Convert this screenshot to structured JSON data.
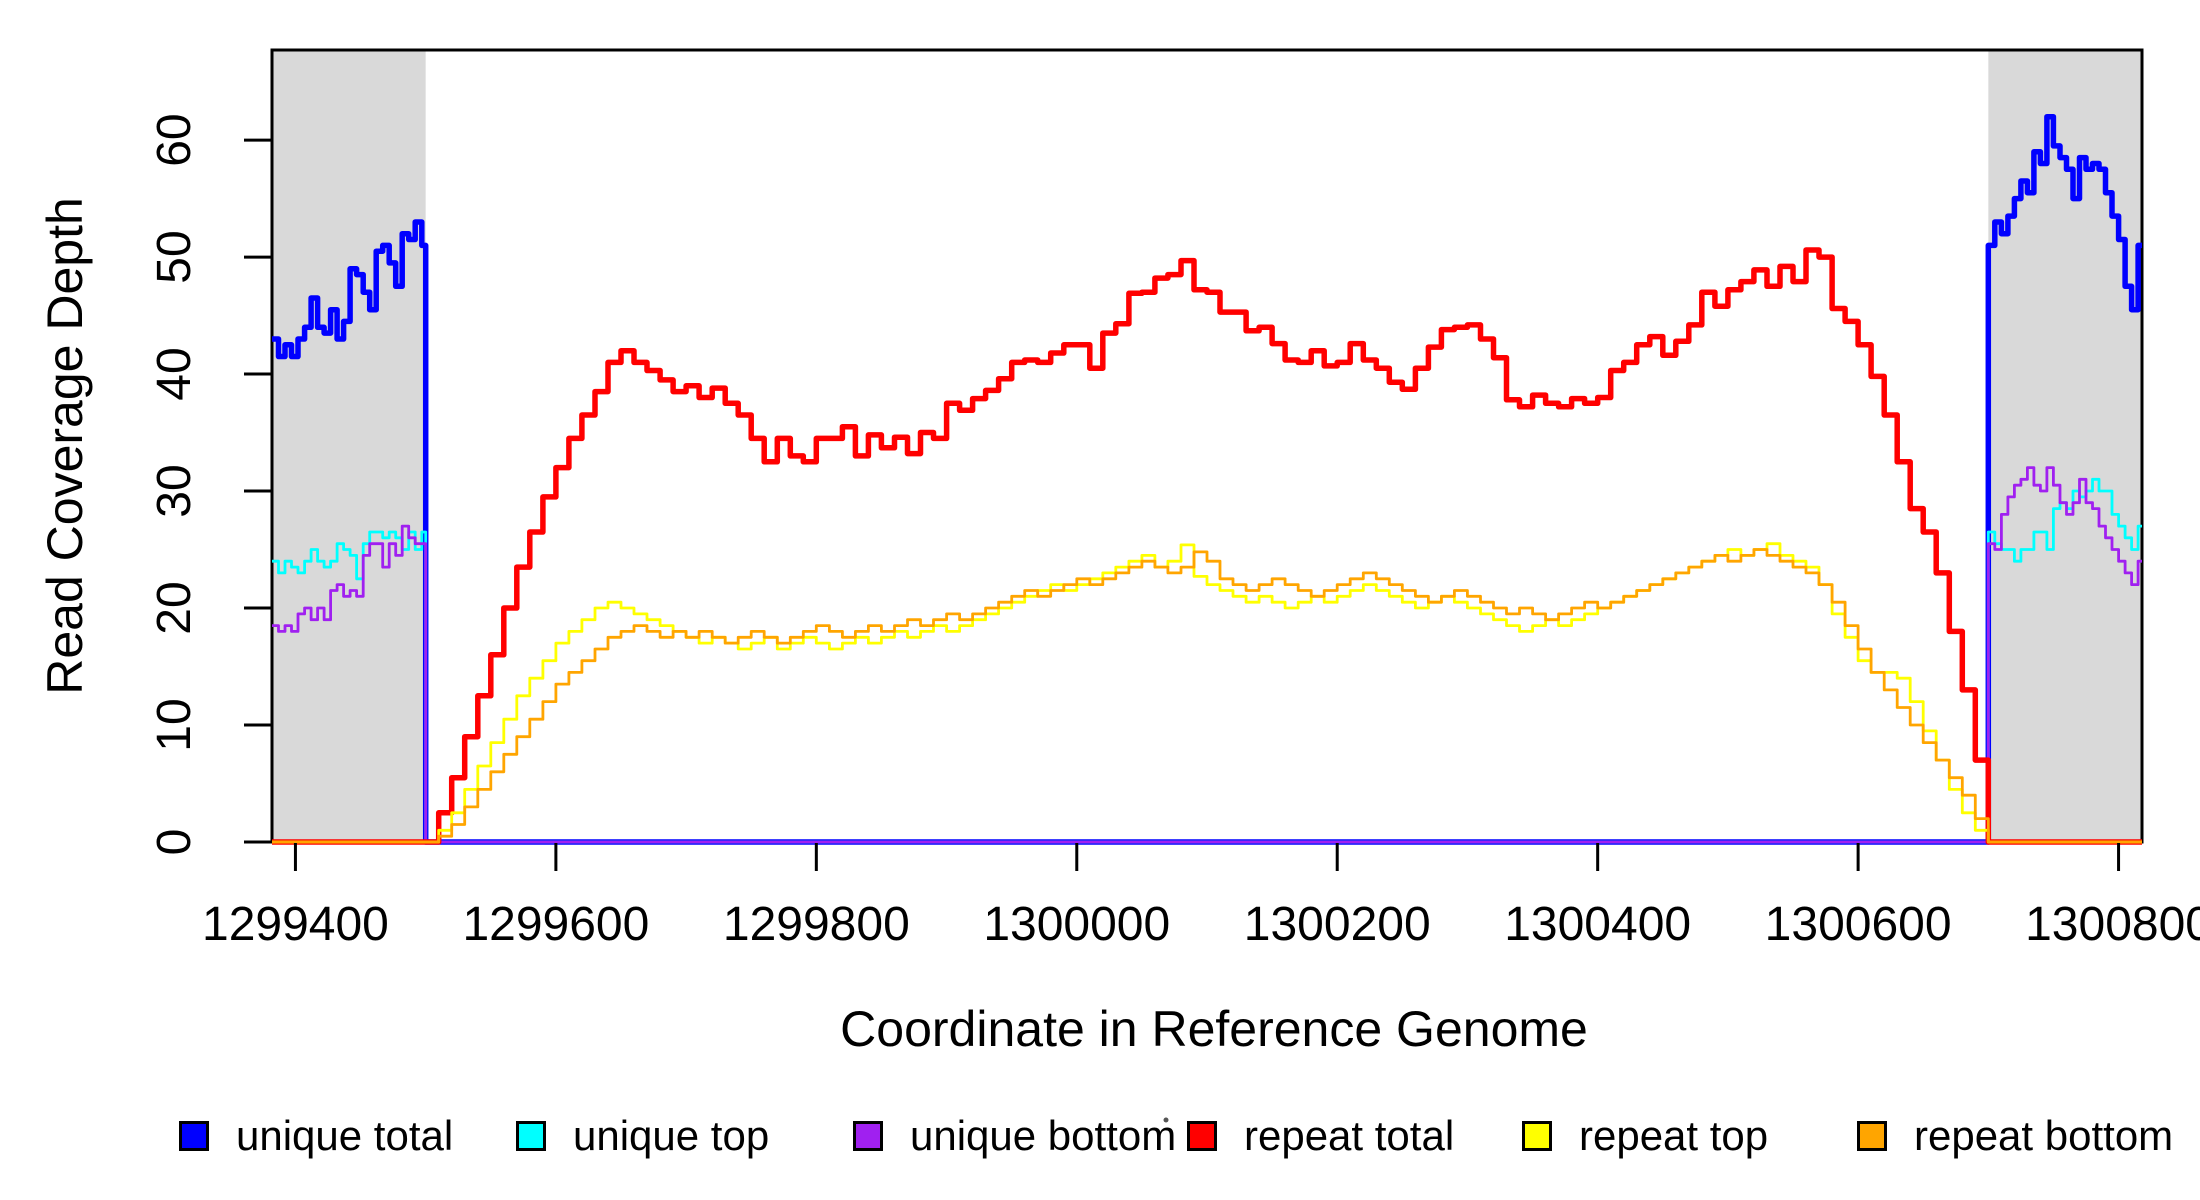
{
  "chart_data": {
    "type": "line",
    "title": "",
    "xlabel": "Coordinate in Reference Genome",
    "ylabel": "Read Coverage Depth",
    "xlim": [
      1299382,
      1300818
    ],
    "ylim": [
      0,
      67.7
    ],
    "x_ticks": [
      1299400,
      1299600,
      1299800,
      1300000,
      1300200,
      1300400,
      1300600,
      1300800
    ],
    "y_ticks": [
      0,
      10,
      20,
      30,
      40,
      50,
      60
    ],
    "grid": false,
    "step_interpolation": true,
    "legend_position": "bottom",
    "shaded_regions": [
      {
        "x0": 1299382,
        "x1": 1299500,
        "color": "#D9D9D9"
      },
      {
        "x0": 1300700,
        "x1": 1300818,
        "color": "#D9D9D9"
      }
    ],
    "axis_color": "#000000",
    "series": [
      {
        "name": "unique total",
        "color": "#0000FF",
        "width": 5.5,
        "points": [
          [
            1299382,
            43
          ],
          [
            1299387,
            41.5
          ],
          [
            1299392,
            42.5
          ],
          [
            1299397,
            41.5
          ],
          [
            1299402,
            43
          ],
          [
            1299407,
            44
          ],
          [
            1299412,
            46.5
          ],
          [
            1299417,
            44
          ],
          [
            1299422,
            43.5
          ],
          [
            1299427,
            45.5
          ],
          [
            1299432,
            43
          ],
          [
            1299437,
            44.5
          ],
          [
            1299442,
            49
          ],
          [
            1299447,
            48.5
          ],
          [
            1299452,
            47
          ],
          [
            1299457,
            45.5
          ],
          [
            1299462,
            50.5
          ],
          [
            1299467,
            51
          ],
          [
            1299472,
            49.5
          ],
          [
            1299477,
            47.5
          ],
          [
            1299482,
            52
          ],
          [
            1299487,
            51.5
          ],
          [
            1299492,
            53
          ],
          [
            1299497,
            51
          ],
          [
            1299500,
            0
          ],
          [
            1300700,
            0
          ],
          [
            1300700,
            51
          ],
          [
            1300705,
            53
          ],
          [
            1300710,
            52
          ],
          [
            1300715,
            53.5
          ],
          [
            1300720,
            55
          ],
          [
            1300725,
            56.5
          ],
          [
            1300730,
            55.5
          ],
          [
            1300735,
            59
          ],
          [
            1300740,
            58
          ],
          [
            1300745,
            62
          ],
          [
            1300750,
            59.5
          ],
          [
            1300755,
            58.5
          ],
          [
            1300760,
            57.5
          ],
          [
            1300765,
            55
          ],
          [
            1300770,
            58.5
          ],
          [
            1300775,
            57.5
          ],
          [
            1300780,
            58
          ],
          [
            1300785,
            57.5
          ],
          [
            1300790,
            55.5
          ],
          [
            1300795,
            53.5
          ],
          [
            1300800,
            51.5
          ],
          [
            1300805,
            47.5
          ],
          [
            1300810,
            45.5
          ],
          [
            1300815,
            51
          ],
          [
            1300818,
            51
          ]
        ]
      },
      {
        "name": "unique top",
        "color": "#00FFFF",
        "width": 2.8,
        "points": [
          [
            1299382,
            24
          ],
          [
            1299387,
            23
          ],
          [
            1299392,
            24
          ],
          [
            1299397,
            23.5
          ],
          [
            1299402,
            23
          ],
          [
            1299407,
            24
          ],
          [
            1299412,
            25
          ],
          [
            1299417,
            24
          ],
          [
            1299422,
            23.5
          ],
          [
            1299427,
            24
          ],
          [
            1299432,
            25.5
          ],
          [
            1299437,
            25
          ],
          [
            1299442,
            24.5
          ],
          [
            1299447,
            22.5
          ],
          [
            1299452,
            25.5
          ],
          [
            1299457,
            26.5
          ],
          [
            1299462,
            26.5
          ],
          [
            1299467,
            26
          ],
          [
            1299472,
            26.5
          ],
          [
            1299477,
            26
          ],
          [
            1299482,
            25
          ],
          [
            1299487,
            26.5
          ],
          [
            1299492,
            25
          ],
          [
            1299497,
            26.5
          ],
          [
            1299500,
            0
          ],
          [
            1300700,
            0
          ],
          [
            1300700,
            26.5
          ],
          [
            1300705,
            25.5
          ],
          [
            1300710,
            25
          ],
          [
            1300715,
            25
          ],
          [
            1300720,
            24
          ],
          [
            1300725,
            25
          ],
          [
            1300730,
            25
          ],
          [
            1300735,
            26.5
          ],
          [
            1300740,
            26.5
          ],
          [
            1300745,
            25
          ],
          [
            1300750,
            28.5
          ],
          [
            1300755,
            29
          ],
          [
            1300760,
            28.5
          ],
          [
            1300765,
            30
          ],
          [
            1300770,
            29.5
          ],
          [
            1300775,
            30
          ],
          [
            1300780,
            31
          ],
          [
            1300785,
            30
          ],
          [
            1300790,
            30
          ],
          [
            1300795,
            28
          ],
          [
            1300800,
            27
          ],
          [
            1300805,
            26
          ],
          [
            1300810,
            25
          ],
          [
            1300815,
            27
          ],
          [
            1300818,
            27
          ]
        ]
      },
      {
        "name": "unique bottom",
        "color": "#A020F0",
        "width": 2.8,
        "points": [
          [
            1299382,
            18.5
          ],
          [
            1299387,
            18
          ],
          [
            1299392,
            18.5
          ],
          [
            1299397,
            18
          ],
          [
            1299402,
            19.5
          ],
          [
            1299407,
            20
          ],
          [
            1299412,
            19
          ],
          [
            1299417,
            20
          ],
          [
            1299422,
            19
          ],
          [
            1299427,
            21.5
          ],
          [
            1299432,
            22
          ],
          [
            1299437,
            21
          ],
          [
            1299442,
            21.5
          ],
          [
            1299447,
            21
          ],
          [
            1299452,
            24.5
          ],
          [
            1299457,
            25.5
          ],
          [
            1299462,
            25.5
          ],
          [
            1299467,
            23.5
          ],
          [
            1299472,
            25.5
          ],
          [
            1299477,
            24.5
          ],
          [
            1299482,
            27
          ],
          [
            1299487,
            26
          ],
          [
            1299492,
            25.5
          ],
          [
            1299497,
            25.5
          ],
          [
            1299500,
            0
          ],
          [
            1300700,
            0
          ],
          [
            1300700,
            25.5
          ],
          [
            1300705,
            25
          ],
          [
            1300710,
            28
          ],
          [
            1300715,
            29.5
          ],
          [
            1300720,
            30.5
          ],
          [
            1300725,
            31
          ],
          [
            1300730,
            32
          ],
          [
            1300735,
            30.5
          ],
          [
            1300740,
            30
          ],
          [
            1300745,
            32
          ],
          [
            1300750,
            30.5
          ],
          [
            1300755,
            29
          ],
          [
            1300760,
            28
          ],
          [
            1300765,
            29
          ],
          [
            1300770,
            31
          ],
          [
            1300775,
            29
          ],
          [
            1300780,
            28.5
          ],
          [
            1300785,
            27
          ],
          [
            1300790,
            26
          ],
          [
            1300795,
            25
          ],
          [
            1300800,
            24
          ],
          [
            1300805,
            23
          ],
          [
            1300810,
            22
          ],
          [
            1300815,
            24
          ],
          [
            1300818,
            24
          ]
        ]
      },
      {
        "name": "repeat total",
        "color": "#FF0000",
        "width": 5.5,
        "x0": 1299500,
        "dx": 10,
        "v": [
          0,
          2.5,
          5.5,
          9,
          12.5,
          16,
          20,
          23.5,
          26.5,
          29.5,
          32,
          34.5,
          36.5,
          38.5,
          41,
          42,
          41,
          40.3,
          39.5,
          38.5,
          39,
          38,
          38.8,
          37.5,
          36.5,
          34.5,
          32.5,
          34.5,
          33,
          32.5,
          34.5,
          34.5,
          35.5,
          33,
          34.8,
          33.7,
          34.6,
          33.2,
          35,
          34.5,
          37.5,
          36.9,
          37.9,
          38.6,
          39.6,
          41,
          41.2,
          41,
          41.8,
          42.5,
          42.5,
          40.5,
          43.5,
          44.3,
          46.9,
          47,
          48.2,
          48.5,
          49.7,
          47.2,
          47,
          45.3,
          45.3,
          43.7,
          44,
          42.6,
          41.2,
          41,
          42,
          40.7,
          41,
          42.6,
          41.2,
          40.5,
          39.3,
          38.7,
          40.5,
          42.3,
          43.8,
          44,
          44.2,
          43,
          41.4,
          37.8,
          37.2,
          38.2,
          37.5,
          37.2,
          37.9,
          37.5,
          38,
          40.3,
          41,
          42.5,
          43.2,
          41.6,
          42.8,
          44.2,
          47,
          45.8,
          47.2,
          47.9,
          48.9,
          47.5,
          49.2,
          47.9,
          50.6,
          50,
          45.6,
          44.5,
          42.5,
          39.8,
          36.5,
          32.5,
          28.5,
          26.5,
          23,
          18,
          13,
          7,
          0
        ]
      },
      {
        "name": "repeat top",
        "color": "#FFFF00",
        "width": 2.8,
        "x0": 1299500,
        "dx": 10,
        "v": [
          0,
          1,
          2.5,
          4.5,
          6.5,
          8.5,
          10.5,
          12.5,
          14,
          15.5,
          17,
          18,
          19,
          20,
          20.5,
          20,
          19.5,
          19,
          18.5,
          18,
          17.5,
          17,
          17.5,
          17,
          16.5,
          17,
          17.5,
          16.5,
          17,
          17.5,
          17,
          16.5,
          17,
          17.5,
          17,
          17.5,
          18,
          17.5,
          18,
          18.5,
          18,
          18.5,
          19,
          19.5,
          20,
          20.5,
          21,
          21.5,
          22,
          21.5,
          22,
          22.5,
          23,
          23.5,
          24,
          24.5,
          23.5,
          24,
          25.4,
          22.7,
          22,
          21.5,
          21,
          20.5,
          21,
          20.5,
          20,
          20.5,
          21,
          20.5,
          21,
          21.5,
          22,
          21.5,
          21,
          20.5,
          20,
          20.5,
          21,
          20.5,
          20,
          19.5,
          19,
          18.5,
          18,
          18.5,
          19,
          18.5,
          19,
          19.5,
          20,
          20.5,
          21,
          21.5,
          22,
          22.5,
          23,
          23.5,
          24,
          24.5,
          25,
          24.5,
          25,
          25.5,
          24.5,
          24,
          23.5,
          22,
          19.5,
          17.5,
          15.5,
          14.5,
          14.5,
          14,
          12,
          9.5,
          7,
          4.5,
          2.5,
          1,
          0
        ]
      },
      {
        "name": "repeat bottom",
        "color": "#FFA500",
        "width": 2.8,
        "x0": 1299500,
        "dx": 10,
        "v": [
          0,
          0.5,
          1.5,
          3,
          4.5,
          6,
          7.5,
          9,
          10.5,
          12,
          13.5,
          14.5,
          15.5,
          16.5,
          17.5,
          18,
          18.5,
          18,
          17.5,
          18,
          17.5,
          18,
          17.5,
          17,
          17.5,
          18,
          17.5,
          17,
          17.5,
          18,
          18.5,
          18,
          17.5,
          18,
          18.5,
          18,
          18.5,
          19,
          18.5,
          19,
          19.5,
          19,
          19.5,
          20,
          20.5,
          21,
          21.5,
          21,
          21.5,
          22,
          22.5,
          22,
          22.5,
          23,
          23.5,
          24,
          23.5,
          23,
          23.5,
          24.8,
          24,
          22.5,
          22,
          21.5,
          22,
          22.5,
          22,
          21.5,
          21,
          21.5,
          22,
          22.5,
          23,
          22.5,
          22,
          21.5,
          21,
          20.5,
          21,
          21.5,
          21,
          20.5,
          20,
          19.5,
          20,
          19.5,
          19,
          19.5,
          20,
          20.5,
          20,
          20.5,
          21,
          21.5,
          22,
          22.5,
          23,
          23.5,
          24,
          24.5,
          24,
          24.5,
          25,
          24.5,
          24,
          23.5,
          23,
          22,
          20.5,
          18.5,
          16.5,
          14.5,
          13,
          11.5,
          10,
          8.5,
          7,
          5.5,
          4,
          2,
          0
        ]
      }
    ]
  }
}
